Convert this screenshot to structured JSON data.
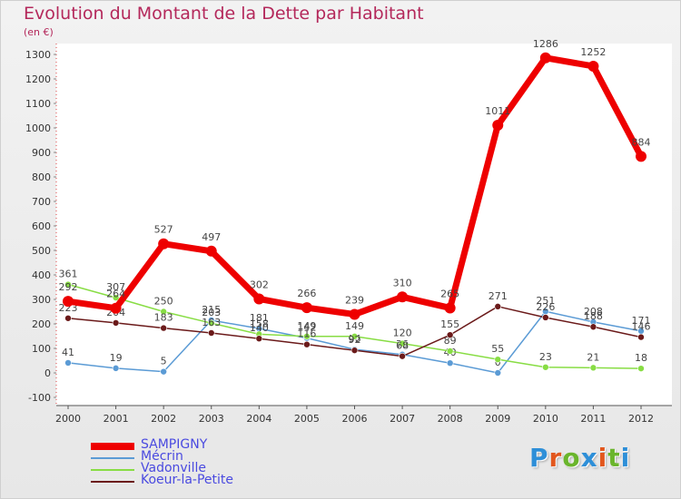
{
  "title": "Evolution du Montant de la Dette par Habitant",
  "subtitle": "(en €)",
  "logo": {
    "text": "Proxiti",
    "letter_colors": [
      "#2e8fd8",
      "#e2571e",
      "#6ab52c",
      "#2e8fd8",
      "#e2571e",
      "#6ab52c",
      "#2e8fd8"
    ]
  },
  "chart_data": {
    "type": "line",
    "x": [
      "2000",
      "2001",
      "2002",
      "2003",
      "2004",
      "2005",
      "2006",
      "2007",
      "2008",
      "2009",
      "2010",
      "2011",
      "2012"
    ],
    "ylim": [
      -100,
      1300
    ],
    "yticks": [
      -100,
      0,
      100,
      200,
      300,
      400,
      500,
      600,
      700,
      800,
      900,
      1000,
      1100,
      1200,
      1300
    ],
    "grid": false,
    "legend": "bottom-left",
    "series": [
      {
        "name": "SAMPIGNY",
        "color": "#ee0000",
        "values": [
          292,
          264,
          527,
          497,
          302,
          266,
          239,
          310,
          265,
          1011,
          1286,
          1252,
          884
        ]
      },
      {
        "name": "Mécrin",
        "color": "#5b9bd5",
        "values": [
          41,
          19,
          5,
          215,
          181,
          142,
          96,
          75,
          40,
          0,
          251,
          208,
          171
        ]
      },
      {
        "name": "Vadonville",
        "color": "#88dd44",
        "values": [
          361,
          307,
          250,
          203,
          158,
          149,
          149,
          120,
          89,
          55,
          23,
          21,
          18
        ]
      },
      {
        "name": "Koeur-la-Petite",
        "color": "#6b1a1a",
        "values": [
          223,
          204,
          183,
          163,
          140,
          116,
          92,
          68,
          155,
          271,
          226,
          188,
          146
        ]
      }
    ]
  }
}
